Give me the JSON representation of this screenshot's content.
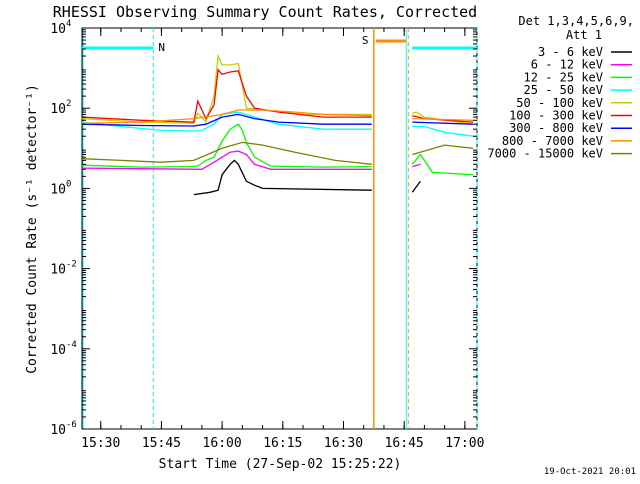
{
  "chart_data": {
    "type": "line",
    "title": "RHESSI Observing Summary Count Rates, Corrected",
    "xlabel": "Start Time (27-Sep-02 15:25:22)",
    "ylabel": "Corrected Count Rate (s⁻¹ detector⁻¹)",
    "y_scale": "log",
    "ylim": [
      1e-06,
      10000
    ],
    "xlim": [
      "15:25:22",
      "17:03:00"
    ],
    "x_ticks": [
      "15:30",
      "15:45",
      "16:00",
      "16:15",
      "16:30",
      "16:45",
      "17:00"
    ],
    "y_ticks": [
      {
        "mantissa": "10",
        "exp": "-6",
        "value": 1e-06
      },
      {
        "mantissa": "10",
        "exp": "-4",
        "value": 0.0001
      },
      {
        "mantissa": "10",
        "exp": "-2",
        "value": 0.01
      },
      {
        "mantissa": "10",
        "exp": "0",
        "value": 1
      },
      {
        "mantissa": "10",
        "exp": "2",
        "value": 100
      },
      {
        "mantissa": "10",
        "exp": "4",
        "value": 10000
      }
    ],
    "legend_header": [
      "Det 1,3,4,5,6,9,",
      "Att 1"
    ],
    "legend_position": "right",
    "footer_date": "19-Oct-2021 20:01",
    "night_segments": [
      {
        "label": "N",
        "start": "15:25:22",
        "end": "15:43:00",
        "color": "#00ffff"
      },
      {
        "label": "",
        "start": "16:47:00",
        "end": "17:03:00",
        "color": "#00ffff"
      }
    ],
    "saa_segments": [
      {
        "label": "S",
        "start": "16:37:30",
        "end": "16:46:00",
        "color": "#ff8c00"
      }
    ],
    "data_gap": [
      "16:37:30",
      "16:47:00"
    ],
    "series": [
      {
        "name": "3 - 6 keV",
        "color": "#000000",
        "style": "sparse",
        "points": [
          [
            "15:25:22",
            null
          ],
          [
            "15:53:00",
            0.7
          ],
          [
            "15:57:00",
            0.8
          ],
          [
            "15:59:00",
            0.9
          ],
          [
            "16:00:00",
            2.2
          ],
          [
            "16:01:00",
            3
          ],
          [
            "16:02:00",
            4
          ],
          [
            "16:03:00",
            5
          ],
          [
            "16:04:00",
            4
          ],
          [
            "16:06:00",
            1.5
          ],
          [
            "16:08:00",
            1.2
          ],
          [
            "16:10:00",
            1.0
          ],
          [
            "16:37:00",
            0.9
          ],
          [
            "16:47:00",
            0.8
          ],
          [
            "16:49:00",
            1.5
          ]
        ]
      },
      {
        "name": "6 - 12 keV",
        "color": "#ff00ff",
        "points": [
          [
            "15:25:22",
            3.2
          ],
          [
            "15:55:00",
            3.0
          ],
          [
            "15:58:00",
            4.5
          ],
          [
            "16:00:00",
            6
          ],
          [
            "16:02:00",
            8
          ],
          [
            "16:04:00",
            8.5
          ],
          [
            "16:06:00",
            7
          ],
          [
            "16:08:00",
            4
          ],
          [
            "16:12:00",
            3
          ],
          [
            "16:37:00",
            3.0
          ],
          [
            "16:47:00",
            3.5
          ],
          [
            "16:49:00",
            4.0
          ]
        ]
      },
      {
        "name": "12 - 25 keV",
        "color": "#00ff00",
        "points": [
          [
            "15:25:22",
            3.8
          ],
          [
            "15:40:00",
            3.4
          ],
          [
            "15:52:00",
            3.5
          ],
          [
            "15:54:00",
            3.6
          ],
          [
            "15:56:00",
            5
          ],
          [
            "15:58:00",
            6
          ],
          [
            "16:00:00",
            15
          ],
          [
            "16:02:00",
            30
          ],
          [
            "16:04:00",
            40
          ],
          [
            "16:05:00",
            28
          ],
          [
            "16:06:00",
            14
          ],
          [
            "16:08:00",
            6
          ],
          [
            "16:12:00",
            3.6
          ],
          [
            "16:25:00",
            3.4
          ],
          [
            "16:37:00",
            3.5
          ],
          [
            "16:47:00",
            4
          ],
          [
            "16:49:00",
            7
          ],
          [
            "16:52:00",
            2.5
          ],
          [
            "17:02:00",
            2.2
          ]
        ]
      },
      {
        "name": "25 - 50 keV",
        "color": "#00ffff",
        "points": [
          [
            "15:25:22",
            45
          ],
          [
            "15:35:00",
            35
          ],
          [
            "15:45:00",
            28
          ],
          [
            "15:53:00",
            27
          ],
          [
            "15:55:00",
            28
          ],
          [
            "15:58:00",
            40
          ],
          [
            "16:00:00",
            70
          ],
          [
            "16:04:00",
            80
          ],
          [
            "16:08:00",
            60
          ],
          [
            "16:14:00",
            40
          ],
          [
            "16:25:00",
            30
          ],
          [
            "16:37:00",
            30
          ],
          [
            "16:47:00",
            35
          ],
          [
            "16:50:00",
            35
          ],
          [
            "16:55:00",
            25
          ],
          [
            "17:02:00",
            20
          ]
        ]
      },
      {
        "name": "50 - 100 keV",
        "color": "#cccc00",
        "points": [
          [
            "15:25:22",
            55
          ],
          [
            "15:40:00",
            45
          ],
          [
            "15:53:00",
            42
          ],
          [
            "15:54:00",
            75
          ],
          [
            "15:56:00",
            45
          ],
          [
            "15:58:00",
            200
          ],
          [
            "15:59:00",
            2000
          ],
          [
            "16:00:00",
            1200
          ],
          [
            "16:02:00",
            1200
          ],
          [
            "16:04:00",
            1300
          ],
          [
            "16:06:00",
            100
          ],
          [
            "16:12:00",
            85
          ],
          [
            "16:20:00",
            70
          ],
          [
            "16:37:00",
            70
          ],
          [
            "16:47:00",
            75
          ],
          [
            "16:48:00",
            80
          ],
          [
            "16:50:00",
            60
          ],
          [
            "17:02:00",
            40
          ]
        ]
      },
      {
        "name": "100 - 300 keV",
        "color": "#ff0000",
        "points": [
          [
            "15:25:22",
            60
          ],
          [
            "15:40:00",
            50
          ],
          [
            "15:53:00",
            45
          ],
          [
            "15:54:00",
            150
          ],
          [
            "15:56:00",
            55
          ],
          [
            "15:58:00",
            120
          ],
          [
            "15:59:00",
            900
          ],
          [
            "16:00:00",
            700
          ],
          [
            "16:02:00",
            800
          ],
          [
            "16:04:00",
            850
          ],
          [
            "16:06:00",
            200
          ],
          [
            "16:08:00",
            100
          ],
          [
            "16:14:00",
            80
          ],
          [
            "16:25:00",
            60
          ],
          [
            "16:37:00",
            60
          ],
          [
            "16:47:00",
            65
          ],
          [
            "16:50:00",
            55
          ],
          [
            "17:02:00",
            45
          ]
        ]
      },
      {
        "name": "300 - 800 keV",
        "color": "#0000ff",
        "points": [
          [
            "15:25:22",
            40
          ],
          [
            "15:40:00",
            37
          ],
          [
            "15:53:00",
            36
          ],
          [
            "15:56:00",
            40
          ],
          [
            "16:00:00",
            60
          ],
          [
            "16:04:00",
            70
          ],
          [
            "16:08:00",
            55
          ],
          [
            "16:14:00",
            45
          ],
          [
            "16:25:00",
            40
          ],
          [
            "16:37:00",
            40
          ],
          [
            "16:47:00",
            45
          ],
          [
            "17:02:00",
            40
          ]
        ]
      },
      {
        "name": "800 - 7000 keV",
        "color": "#ff8c00",
        "points": [
          [
            "15:25:22",
            42
          ],
          [
            "15:40:00",
            45
          ],
          [
            "15:53:00",
            55
          ],
          [
            "16:00:00",
            70
          ],
          [
            "16:04:00",
            90
          ],
          [
            "16:10:00",
            90
          ],
          [
            "16:18:00",
            80
          ],
          [
            "16:25:00",
            70
          ],
          [
            "16:37:00",
            65
          ],
          [
            "16:47:00",
            55
          ],
          [
            "17:02:00",
            50
          ]
        ]
      },
      {
        "name": "7000 - 15000 keV",
        "color": "#808000",
        "points": [
          [
            "15:25:22",
            5.5
          ],
          [
            "15:35:00",
            5
          ],
          [
            "15:45:00",
            4.5
          ],
          [
            "15:53:00",
            5
          ],
          [
            "16:00:00",
            10
          ],
          [
            "16:05:00",
            14
          ],
          [
            "16:10:00",
            12
          ],
          [
            "16:18:00",
            8
          ],
          [
            "16:28:00",
            5
          ],
          [
            "16:37:00",
            4
          ],
          [
            "16:47:00",
            7
          ],
          [
            "16:55:00",
            12
          ],
          [
            "17:02:00",
            10
          ]
        ]
      }
    ]
  }
}
